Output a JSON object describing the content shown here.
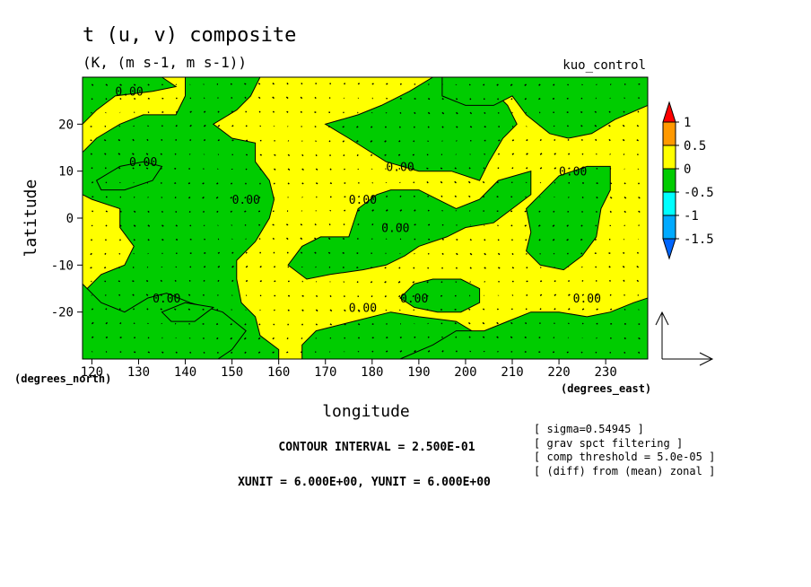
{
  "chart_data": {
    "type": "heatmap",
    "title": "t (u, v) composite",
    "subtitle": "(K, (m s-1, m s-1))",
    "run_label": "kuo_control",
    "xlabel": "longitude",
    "ylabel": "latitude",
    "x_units": "(degrees_east)",
    "y_units": "(degrees_north)",
    "xlim": [
      118,
      239
    ],
    "ylim": [
      -30,
      30
    ],
    "x_ticks": [
      120,
      130,
      140,
      150,
      160,
      170,
      180,
      190,
      200,
      210,
      220,
      230
    ],
    "y_ticks": [
      -20,
      -10,
      0,
      10,
      20
    ],
    "grid": false,
    "contour_label": "0.00",
    "colorbar": {
      "levels": [
        "1",
        "0.5",
        "0",
        "-0.5",
        "-1",
        "-1.5"
      ],
      "colors": {
        "gt1": "#ff0000",
        "0.5to1": "#ff9900",
        "0to0.5": "#ffff00",
        "-0.5to0": "#00cc00",
        "-1to-0.5": "#00ffff",
        "-1.5to-1": "#00aaff",
        "lt-1.5": "#0066ff"
      }
    },
    "negative_regions": [
      {
        "name": "west-band",
        "polygon": [
          [
            118,
            -30
          ],
          [
            118,
            -27
          ],
          [
            121,
            -24
          ],
          [
            118,
            -20
          ],
          [
            118,
            -16
          ],
          [
            122,
            -12
          ],
          [
            127,
            -10
          ],
          [
            129,
            -6
          ],
          [
            126,
            -2
          ],
          [
            126,
            2
          ],
          [
            120,
            4
          ],
          [
            118,
            5
          ],
          [
            118,
            14
          ],
          [
            121,
            17
          ],
          [
            126,
            20
          ],
          [
            131,
            22
          ],
          [
            138,
            22
          ],
          [
            140,
            26
          ],
          [
            140,
            30
          ],
          [
            156,
            30
          ],
          [
            154,
            26
          ],
          [
            151,
            23
          ],
          [
            146,
            20
          ],
          [
            150,
            17
          ],
          [
            155,
            16
          ],
          [
            155,
            12
          ],
          [
            158,
            8
          ],
          [
            159,
            4
          ],
          [
            158,
            0
          ],
          [
            155,
            -5
          ],
          [
            151,
            -9
          ],
          [
            151,
            -13
          ],
          [
            152,
            -18
          ],
          [
            155,
            -21
          ],
          [
            156,
            -25
          ],
          [
            160,
            -28
          ],
          [
            160,
            -30
          ]
        ]
      },
      {
        "name": "island-west",
        "polygon": [
          [
            121,
            8
          ],
          [
            126,
            11
          ],
          [
            131,
            12
          ],
          [
            135,
            11
          ],
          [
            133,
            8
          ],
          [
            127,
            6
          ],
          [
            122,
            6
          ]
        ]
      },
      {
        "name": "patch-nw",
        "polygon": [
          [
            118,
            20
          ],
          [
            121,
            23
          ],
          [
            125,
            26
          ],
          [
            133,
            27
          ],
          [
            138,
            28
          ],
          [
            135,
            30
          ],
          [
            118,
            30
          ]
        ]
      },
      {
        "name": "patch-sw",
        "polygon": [
          [
            118,
            -14
          ],
          [
            122,
            -18
          ],
          [
            127,
            -20
          ],
          [
            132,
            -17
          ],
          [
            136,
            -16
          ],
          [
            141,
            -18
          ],
          [
            148,
            -20
          ],
          [
            153,
            -24
          ],
          [
            150,
            -28
          ],
          [
            147,
            -30
          ],
          [
            118,
            -30
          ]
        ]
      },
      {
        "name": "island-south-west",
        "polygon": [
          [
            135,
            -20
          ],
          [
            140,
            -18
          ],
          [
            146,
            -19
          ],
          [
            142,
            -22
          ],
          [
            137,
            -22
          ]
        ]
      },
      {
        "name": "central-band",
        "polygon": [
          [
            165,
            -30
          ],
          [
            165,
            -27
          ],
          [
            168,
            -24
          ],
          [
            176,
            -22
          ],
          [
            184,
            -20
          ],
          [
            190,
            -21
          ],
          [
            198,
            -22
          ],
          [
            203,
            -25
          ],
          [
            205,
            -30
          ]
        ]
      },
      {
        "name": "central-blob",
        "polygon": [
          [
            162,
            -10
          ],
          [
            165,
            -6
          ],
          [
            169,
            -4
          ],
          [
            175,
            -4
          ],
          [
            177,
            2
          ],
          [
            181,
            5
          ],
          [
            184,
            6
          ],
          [
            190,
            6
          ],
          [
            194,
            4
          ],
          [
            198,
            2
          ],
          [
            203,
            4
          ],
          [
            207,
            8
          ],
          [
            214,
            10
          ],
          [
            214,
            5
          ],
          [
            210,
            2
          ],
          [
            206,
            -1
          ],
          [
            200,
            -2
          ],
          [
            196,
            -4
          ],
          [
            190,
            -6
          ],
          [
            187,
            -8
          ],
          [
            183,
            -10
          ],
          [
            178,
            -11
          ],
          [
            171,
            -12
          ],
          [
            166,
            -13
          ]
        ]
      },
      {
        "name": "north-central",
        "polygon": [
          [
            170,
            20
          ],
          [
            175,
            17
          ],
          [
            183,
            12
          ],
          [
            190,
            10
          ],
          [
            197,
            10
          ],
          [
            203,
            8
          ],
          [
            205,
            12
          ],
          [
            208,
            17
          ],
          [
            211,
            20
          ],
          [
            209,
            24
          ],
          [
            206,
            27
          ],
          [
            203,
            30
          ],
          [
            193,
            30
          ],
          [
            188,
            27
          ],
          [
            182,
            24
          ],
          [
            177,
            22
          ]
        ]
      },
      {
        "name": "north-east",
        "polygon": [
          [
            195,
            26
          ],
          [
            200,
            24
          ],
          [
            206,
            24
          ],
          [
            210,
            26
          ],
          [
            213,
            22
          ],
          [
            218,
            18
          ],
          [
            222,
            17
          ],
          [
            227,
            18
          ],
          [
            232,
            21
          ],
          [
            239,
            24
          ],
          [
            239,
            30
          ],
          [
            195,
            30
          ]
        ]
      },
      {
        "name": "east-blob",
        "polygon": [
          [
            213,
            2
          ],
          [
            216,
            5
          ],
          [
            220,
            9
          ],
          [
            226,
            11
          ],
          [
            231,
            11
          ],
          [
            231,
            6
          ],
          [
            229,
            2
          ],
          [
            228,
            -4
          ],
          [
            225,
            -8
          ],
          [
            221,
            -11
          ],
          [
            216,
            -10
          ],
          [
            213,
            -7
          ],
          [
            214,
            -3
          ]
        ]
      },
      {
        "name": "south-east-oval",
        "polygon": [
          [
            186,
            -17
          ],
          [
            189,
            -14
          ],
          [
            193,
            -13
          ],
          [
            199,
            -13
          ],
          [
            203,
            -15
          ],
          [
            203,
            -18
          ],
          [
            199,
            -20
          ],
          [
            194,
            -20
          ],
          [
            189,
            -19
          ]
        ]
      },
      {
        "name": "south-east",
        "polygon": [
          [
            186,
            -30
          ],
          [
            193,
            -27
          ],
          [
            198,
            -24
          ],
          [
            204,
            -24
          ],
          [
            209,
            -22
          ],
          [
            214,
            -20
          ],
          [
            220,
            -20
          ],
          [
            226,
            -21
          ],
          [
            231,
            -20
          ],
          [
            236,
            -18
          ],
          [
            239,
            -17
          ],
          [
            239,
            -30
          ]
        ]
      }
    ],
    "contour_labels": [
      {
        "x": 128,
        "y": 27
      },
      {
        "x": 131,
        "y": 12
      },
      {
        "x": 153,
        "y": 4
      },
      {
        "x": 136,
        "y": -17
      },
      {
        "x": 186,
        "y": 11
      },
      {
        "x": 178,
        "y": 4
      },
      {
        "x": 185,
        "y": -2
      },
      {
        "x": 223,
        "y": 10
      },
      {
        "x": 178,
        "y": -19
      },
      {
        "x": 189,
        "y": -17
      },
      {
        "x": 226,
        "y": -17
      }
    ],
    "vector_reference": {
      "xunit": "6.000E+00",
      "yunit": "6.000E+00"
    }
  },
  "footer": {
    "contour_interval": "CONTOUR INTERVAL = 2.500E-01",
    "units": "XUNIT = 6.000E+00, YUNIT = 6.000E+00"
  },
  "notes": [
    "[ sigma=0.54945 ]",
    "[ grav spct filtering ]",
    "[ comp threshold = 5.0e-05 ]",
    "[ (diff) from (mean) zonal ]"
  ]
}
